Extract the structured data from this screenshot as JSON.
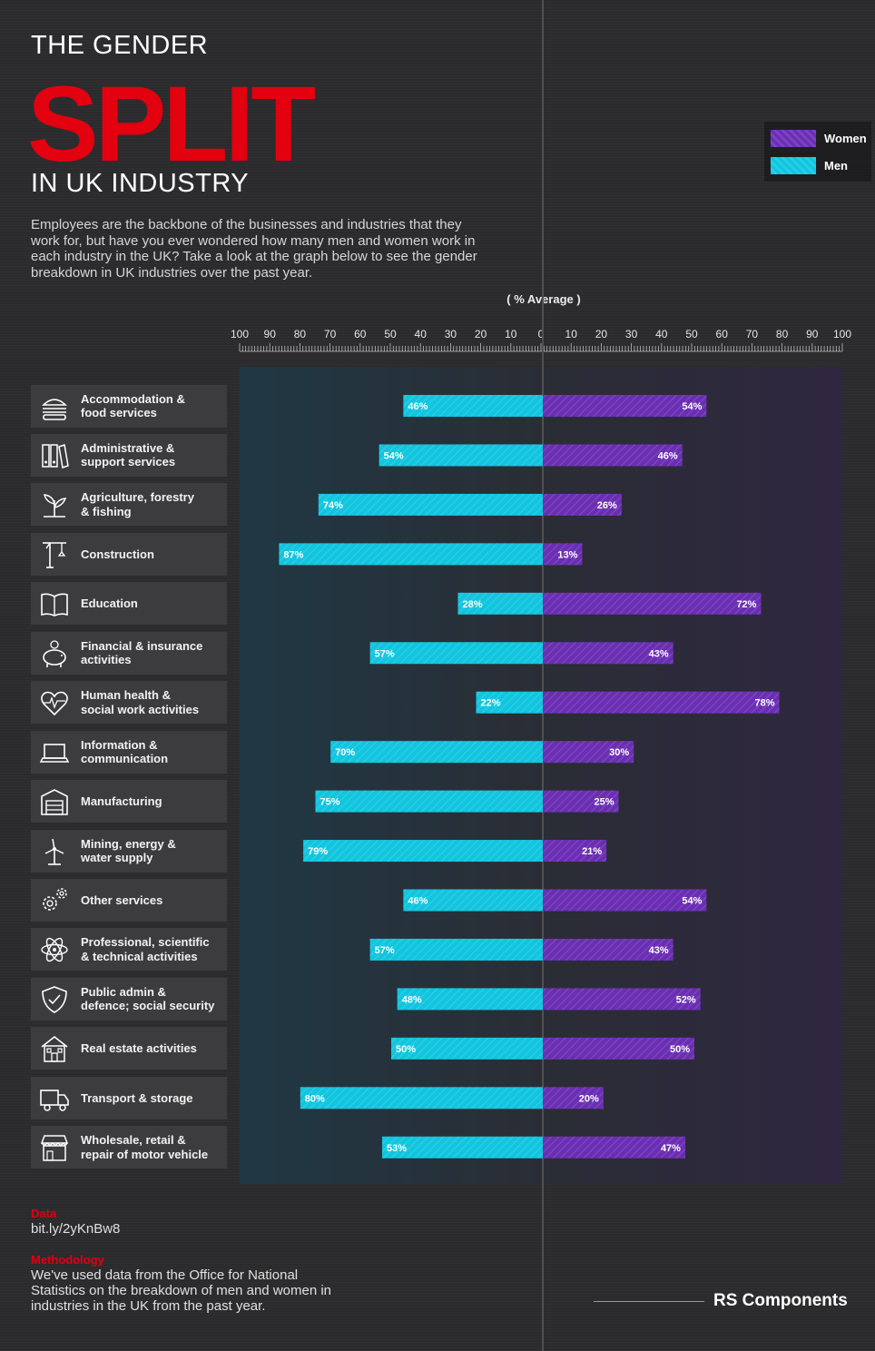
{
  "title": {
    "line1": "THE GENDER",
    "line2": "SPLIT",
    "line3": "IN UK INDUSTRY"
  },
  "intro": "Employees are the backbone of the businesses and industries that they work for, but have you ever wondered how many men and women work in each industry in the UK? Take a look at the graph below to see the gender breakdown in UK industries over the past year.",
  "legend": {
    "women": "Women",
    "men": "Men"
  },
  "colors": {
    "women": "#6a2fb0",
    "men": "#14c3dc",
    "accent": "#e3000f"
  },
  "axis_label": "( % Average )",
  "categories": [
    {
      "label": "Accommodation &\nfood services",
      "icon": "burger-icon"
    },
    {
      "label": "Administrative &\nsupport services",
      "icon": "binders-icon"
    },
    {
      "label": "Agriculture, forestry\n& fishing",
      "icon": "plant-icon"
    },
    {
      "label": "Construction",
      "icon": "crane-icon"
    },
    {
      "label": "Education",
      "icon": "book-icon"
    },
    {
      "label": "Financial & insurance\nactivities",
      "icon": "piggy-bank-icon"
    },
    {
      "label": "Human health &\nsocial work activities",
      "icon": "heart-pulse-icon"
    },
    {
      "label": "Information &\ncommunication",
      "icon": "laptop-icon"
    },
    {
      "label": "Manufacturing",
      "icon": "factory-icon"
    },
    {
      "label": "Mining, energy &\nwater supply",
      "icon": "wind-turbine-icon"
    },
    {
      "label": "Other services",
      "icon": "gears-icon"
    },
    {
      "label": "Professional, scientific\n& technical activities",
      "icon": "atom-icon"
    },
    {
      "label": "Public admin &\ndefence; social security",
      "icon": "shield-icon"
    },
    {
      "label": "Real estate activities",
      "icon": "house-icon"
    },
    {
      "label": "Transport & storage",
      "icon": "truck-icon"
    },
    {
      "label": "Wholesale, retail &\nrepair of motor vehicle",
      "icon": "shop-icon"
    }
  ],
  "chart_data": {
    "type": "bar",
    "orientation": "horizontal-diverging",
    "categories": [
      "Accommodation & food services",
      "Administrative & support services",
      "Agriculture, forestry & fishing",
      "Construction",
      "Education",
      "Financial & insurance activities",
      "Human health & social work activities",
      "Information & communication",
      "Manufacturing",
      "Mining, energy & water supply",
      "Other services",
      "Professional, scientific & technical activities",
      "Public admin & defence; social security",
      "Real estate activities",
      "Transport & storage",
      "Wholesale, retail & repair of motor vehicle"
    ],
    "series": [
      {
        "name": "Men",
        "side": "left",
        "values": [
          46,
          54,
          74,
          87,
          28,
          57,
          22,
          70,
          75,
          79,
          46,
          57,
          48,
          50,
          80,
          53
        ]
      },
      {
        "name": "Women",
        "side": "right",
        "values": [
          54,
          46,
          26,
          13,
          72,
          43,
          78,
          30,
          25,
          21,
          54,
          43,
          52,
          50,
          20,
          47
        ]
      }
    ],
    "xlabel": "( % Average )",
    "xlim": [
      0,
      100
    ],
    "ticks": [
      "100",
      "90",
      "80",
      "70",
      "60",
      "50",
      "40",
      "30",
      "20",
      "10",
      "0",
      "10",
      "20",
      "30",
      "40",
      "50",
      "60",
      "70",
      "80",
      "90",
      "100"
    ],
    "value_suffix": "%",
    "legend": "top-right"
  },
  "footer": {
    "data_heading": "Data",
    "data_link": "bit.ly/2yKnBw8",
    "method_heading": "Methodology",
    "method_text": "We've used data from the Office for National Statistics on the breakdown of men and women in industries in the UK from the past year.",
    "brand": "RS Components"
  }
}
